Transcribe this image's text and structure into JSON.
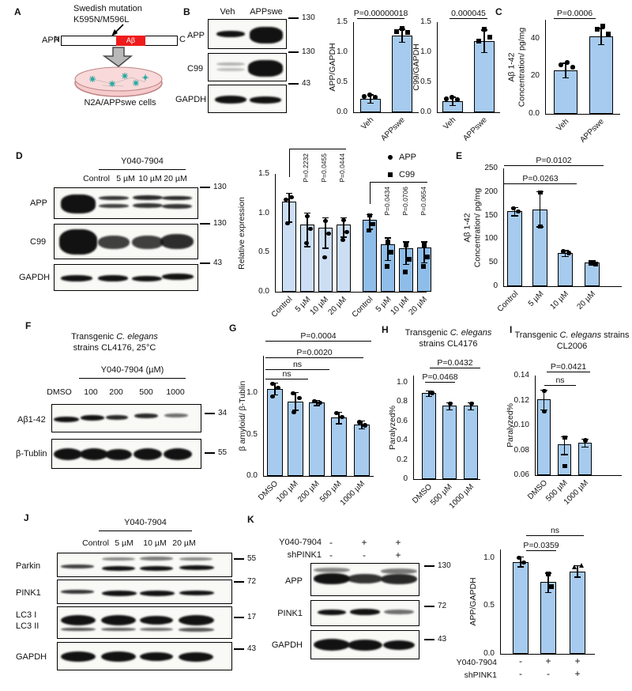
{
  "colors": {
    "bar": "#a6cbee",
    "barLight": "#ccdef4",
    "barDark": "#8fbde9",
    "abRed": "#ee1c1c",
    "dishPink": "#f6caca",
    "cellTeal": "#2fa9a4"
  },
  "figure": {
    "panels": {
      "A": {
        "letter": "A",
        "mutation_line1": "Swedish mutation",
        "mutation_line2": "K595N/M596L",
        "app_label": "APP",
        "n_term": "N",
        "c_term": "C",
        "ab_label": "Aβ",
        "cells_label": "N2A/APPswe cells"
      },
      "B": {
        "letter": "B",
        "lanes": [
          "Veh",
          "APPswe"
        ],
        "rows": [
          {
            "label": "APP",
            "mw": "130"
          },
          {
            "label": "C99",
            "mw": "130"
          },
          {
            "label": "GAPDH",
            "mw": "43"
          }
        ]
      },
      "C": {
        "letter": "C"
      },
      "D": {
        "letter": "D",
        "treatment": "Y040-7904",
        "lanes": [
          "Control",
          "5 µM",
          "10 µM",
          "20 µM"
        ],
        "rows": [
          {
            "label": "APP",
            "mw": "130"
          },
          {
            "label": "C99",
            "mw": "130"
          },
          {
            "label": "GAPDH",
            "mw": "43"
          }
        ]
      },
      "E": {
        "letter": "E"
      },
      "F": {
        "letter": "F",
        "title_pre": "Transgenic ",
        "title_italic": "C. elegans",
        "title_line2": "strains CL4176, 25°C",
        "treatment": "Y040-7904 (µM)",
        "lanes": [
          "DMSO",
          "100",
          "200",
          "500",
          "1000"
        ],
        "rows": [
          {
            "label": "Aβ1-42",
            "mw": "34"
          },
          {
            "label": "β-Tublin",
            "mw": "55"
          }
        ]
      },
      "G": {
        "letter": "G"
      },
      "H": {
        "letter": "H"
      },
      "I": {
        "letter": "I"
      },
      "J": {
        "letter": "J",
        "treatment": "Y040-7904",
        "lanes": [
          "Control",
          "5 µM",
          "10 µM",
          "20 µM"
        ],
        "rows": [
          {
            "label": "Parkin",
            "mw": "55"
          },
          {
            "label": "PINK1",
            "mw": "72"
          },
          {
            "label": "LC3 I",
            "label2": "LC3 II",
            "mw": "17"
          },
          {
            "label": "GAPDH",
            "mw": "43"
          }
        ]
      },
      "K": {
        "letter": "K",
        "cond_rows": [
          {
            "label": "Y040-7904",
            "values": [
              "-",
              "+",
              "+"
            ]
          },
          {
            "label": "shPINK1",
            "values": [
              "-",
              "-",
              "+"
            ]
          }
        ],
        "rows": [
          {
            "label": "APP",
            "mw": "130"
          },
          {
            "label": "PINK1",
            "mw": "72"
          },
          {
            "label": "GAPDH",
            "mw": "43"
          }
        ]
      }
    }
  },
  "chart_data": [
    {
      "panel": "B",
      "type": "bar",
      "ylabel": "APP/GAPDH",
      "categories": [
        "Veh",
        "APPswe"
      ],
      "values": [
        0.22,
        1.27
      ],
      "ylim": [
        0,
        1.5
      ],
      "yticks": [
        "0.0",
        "0.5",
        "1.0",
        "1.5"
      ],
      "significance": [
        {
          "label": "P=0.00000018",
          "between": [
            "Veh",
            "APPswe"
          ]
        }
      ]
    },
    {
      "panel": "B",
      "type": "bar",
      "ylabel": "C99/GAPDH",
      "categories": [
        "Veh",
        "APPswe"
      ],
      "values": [
        0.18,
        1.18
      ],
      "ylim": [
        0,
        1.5
      ],
      "yticks": [
        "0.0",
        "0.5",
        "1.0",
        "1.5"
      ],
      "significance": [
        {
          "label": "0.000045",
          "between": [
            "Veh",
            "APPswe"
          ]
        }
      ]
    },
    {
      "panel": "C",
      "type": "bar",
      "ylabel_line1": "Aβ 1-42",
      "ylabel_line2": "Concentration/ pg/mg",
      "categories": [
        "Veh",
        "APPswe"
      ],
      "values": [
        23,
        41
      ],
      "ylim": [
        0,
        50
      ],
      "yticks": [
        "0.0",
        "20",
        "40"
      ],
      "significance": [
        {
          "label": "P=0.0006",
          "between": [
            "Veh",
            "APPswe"
          ]
        }
      ]
    },
    {
      "panel": "D",
      "type": "grouped_bar",
      "ylabel": "Relative expression",
      "categories": [
        "Control",
        "5 µM",
        "10 µM",
        "20 µM"
      ],
      "series": [
        {
          "name": "APP",
          "values": [
            1.15,
            0.86,
            0.82,
            0.86
          ],
          "pvalues_vs_control": [
            "P=0.2232",
            "P=0.0455",
            "P=0.0444"
          ]
        },
        {
          "name": "C99",
          "values": [
            0.92,
            0.6,
            0.55,
            0.56
          ],
          "pvalues_vs_control": [
            "P=0.0434",
            "P=0.0706",
            "P=0.0654"
          ]
        }
      ],
      "ylim": [
        0,
        1.5
      ],
      "yticks": [
        "0.0",
        "0.5",
        "1.0",
        "1.5"
      ],
      "legend": [
        "APP",
        "C99"
      ]
    },
    {
      "panel": "E",
      "type": "bar",
      "ylabel_line1": "Aβ 1-42",
      "ylabel_line2": "Concentration/ pg/mg",
      "categories": [
        "Control",
        "5 µM",
        "10 µM",
        "20 µM"
      ],
      "values": [
        160,
        163,
        70,
        50
      ],
      "ylim": [
        0,
        250
      ],
      "yticks": [
        "0",
        "50",
        "100",
        "150",
        "200",
        "250"
      ],
      "significance": [
        {
          "label": "P=0.0263",
          "between": [
            "Control",
            "10 µM"
          ]
        },
        {
          "label": "P=0.0102",
          "between": [
            "Control",
            "20 µM"
          ]
        }
      ]
    },
    {
      "panel": "G",
      "type": "bar",
      "ylabel": "β amyloid/ β-Tublin",
      "categories": [
        "DMSO",
        "100 µM",
        "200 µM",
        "500 µM",
        "1000 µM"
      ],
      "values": [
        1.05,
        0.9,
        0.89,
        0.71,
        0.62
      ],
      "ylim": [
        0,
        1.45
      ],
      "yticks": [
        "0.0",
        "0.5",
        "1.0"
      ],
      "significance": [
        {
          "label": "ns",
          "between": [
            "DMSO",
            "100 µM"
          ]
        },
        {
          "label": "ns",
          "between": [
            "DMSO",
            "200 µM"
          ]
        },
        {
          "label": "P=0.0020",
          "between": [
            "DMSO",
            "500 µM"
          ]
        },
        {
          "label": "P=0.0004",
          "between": [
            "DMSO",
            "1000 µM"
          ]
        }
      ]
    },
    {
      "panel": "H",
      "type": "bar",
      "title_pre": "Transgenic ",
      "title_italic": "C. elegans",
      "title_line2": "strains CL4176",
      "ylabel": "Paralyzed%",
      "categories": [
        "DMSO",
        "500 µM",
        "1000 µM"
      ],
      "values": [
        0.89,
        0.76,
        0.76
      ],
      "ylim": [
        0,
        1.07
      ],
      "yticks": [
        "0",
        "0.2",
        "0.4",
        "0.6",
        "0.8",
        "1.0"
      ],
      "significance": [
        {
          "label": "P=0.0468",
          "between": [
            "DMSO",
            "500 µM"
          ]
        },
        {
          "label": "P=0.0432",
          "between": [
            "DMSO",
            "1000 µM"
          ]
        }
      ]
    },
    {
      "panel": "I",
      "type": "bar",
      "title_pre": "Transgenic ",
      "title_italic": "C. elegans",
      "title_post": " strains",
      "title_line2": "CL2006",
      "ylabel": "Paralyzed%",
      "categories": [
        "DMSO",
        "500 µM",
        "1000 µM"
      ],
      "values": [
        0.121,
        0.085,
        0.086
      ],
      "ylim": [
        0.06,
        0.14
      ],
      "yticks": [
        "0.06",
        "0.08",
        "0.10",
        "0.12",
        "0.14"
      ],
      "significance": [
        {
          "label": "ns",
          "between": [
            "DMSO",
            "500 µM"
          ]
        },
        {
          "label": "P=0.0421",
          "between": [
            "DMSO",
            "1000 µM"
          ]
        }
      ]
    },
    {
      "panel": "K",
      "type": "bar",
      "ylabel": "APP/GAPDH",
      "categories": [
        "-/-",
        "+/-",
        "+/+"
      ],
      "values": [
        0.96,
        0.75,
        0.86
      ],
      "ylim": [
        0,
        1.09
      ],
      "yticks": [
        "0.0",
        "0.5",
        "1.0"
      ],
      "xaxis_rows": [
        {
          "label": "Y040-7904",
          "values": [
            "-",
            "+",
            "+"
          ]
        },
        {
          "label": "shPINK1",
          "values": [
            "-",
            "-",
            "+"
          ]
        }
      ],
      "significance": [
        {
          "label": "P=0.0359",
          "between": [
            "-/-",
            "+/-"
          ]
        },
        {
          "label": "ns",
          "between": [
            "-/-",
            "+/+"
          ]
        }
      ]
    }
  ]
}
